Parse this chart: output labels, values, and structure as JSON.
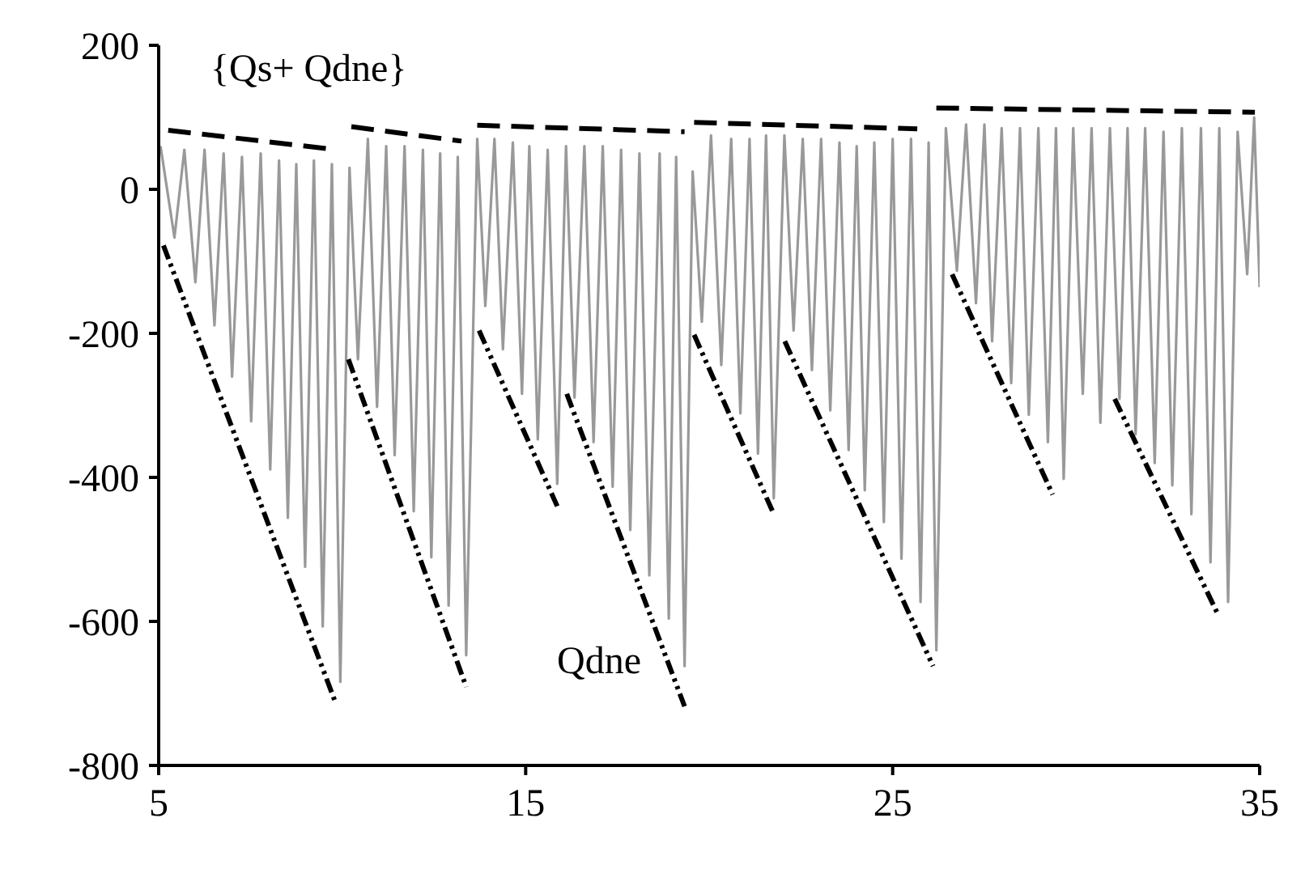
{
  "chart_data": {
    "type": "line",
    "xlim": [
      5,
      35
    ],
    "xticks": [
      5,
      15,
      25,
      35
    ],
    "ylim": [
      -800,
      200
    ],
    "yticks": [
      -800,
      -600,
      -400,
      -200,
      0,
      200
    ],
    "grid": false,
    "legend": false,
    "marker": "none",
    "annotations": [
      "{Qs+ Qdne}",
      "Qdne"
    ],
    "series": [
      {
        "color": "#999999",
        "line_style": "solid",
        "x": [
          5.05,
          5.43,
          5.7,
          6.0,
          6.25,
          6.52,
          6.77,
          7.0,
          7.27,
          7.52,
          7.78,
          8.04,
          8.28,
          8.52,
          8.75,
          8.99,
          9.23,
          9.47,
          9.72,
          9.95,
          10.2,
          10.43,
          10.7,
          10.95,
          11.2,
          11.43,
          11.7,
          11.95,
          12.2,
          12.43,
          12.67,
          12.9,
          13.15,
          13.38,
          13.68,
          13.9,
          14.15,
          14.38,
          14.65,
          14.9,
          15.1,
          15.33,
          15.6,
          15.86,
          16.1,
          16.33,
          16.6,
          16.85,
          17.1,
          17.37,
          17.6,
          17.85,
          18.1,
          18.37,
          18.65,
          18.9,
          19.1,
          19.33,
          19.55,
          19.8,
          20.05,
          20.33,
          20.6,
          20.85,
          21.1,
          21.33,
          21.55,
          21.76,
          22.05,
          22.3,
          22.55,
          22.8,
          23.05,
          23.3,
          23.55,
          23.8,
          24.02,
          24.24,
          24.5,
          24.76,
          25.0,
          25.24,
          25.5,
          25.76,
          25.98,
          26.19,
          26.45,
          26.75,
          27.0,
          27.27,
          27.5,
          27.71,
          27.97,
          28.23,
          28.47,
          28.71,
          28.97,
          29.23,
          29.45,
          29.66,
          29.92,
          30.18,
          30.42,
          30.66,
          30.92,
          31.18,
          31.4,
          31.62,
          31.88,
          32.14,
          32.38,
          32.62,
          32.88,
          33.14,
          33.4,
          33.66,
          33.9,
          34.14,
          34.4,
          34.66,
          34.85,
          35
        ],
        "values": [
          60,
          -67,
          55,
          -129,
          55,
          -189,
          50,
          -260,
          45,
          -322,
          50,
          -389,
          40,
          -456,
          35,
          -524,
          40,
          -607,
          35,
          -684,
          30,
          -236,
          70,
          -302,
          60,
          -369,
          60,
          -447,
          55,
          -511,
          50,
          -578,
          45,
          -647,
          70,
          -162,
          70,
          -222,
          65,
          -284,
          60,
          -347,
          55,
          -409,
          60,
          -289,
          60,
          -351,
          60,
          -413,
          55,
          -473,
          50,
          -536,
          50,
          -596,
          45,
          -662,
          25,
          -184,
          75,
          -244,
          70,
          -311,
          70,
          -367,
          75,
          -429,
          75,
          -196,
          70,
          -251,
          70,
          -307,
          65,
          -362,
          60,
          -418,
          65,
          -462,
          70,
          -513,
          70,
          -573,
          65,
          -640,
          85,
          -113,
          90,
          -158,
          90,
          -211,
          85,
          -269,
          85,
          -313,
          85,
          -351,
          85,
          -402,
          85,
          -284,
          85,
          -324,
          85,
          -291,
          85,
          -340,
          85,
          -380,
          80,
          -411,
          85,
          -451,
          85,
          -518,
          85,
          -573,
          80,
          -118,
          100,
          -136
        ]
      },
      {
        "color": "#000000",
        "line_style": "dashed",
        "x": [
          5.26,
          9.69,
          10.0,
          10.25,
          13.25,
          13.5,
          13.68,
          19.33,
          19.45,
          19.59,
          25.67,
          25.9,
          26.19,
          34.87
        ],
        "values": [
          82,
          56,
          null,
          87,
          67,
          null,
          89,
          80,
          null,
          93,
          84,
          null,
          113,
          107
        ]
      },
      {
        "color": "#000000",
        "line_style": "dotted",
        "x": [
          5.13,
          9.82,
          10.0,
          10.17,
          13.38,
          13.55,
          13.73,
          15.86,
          16.0,
          16.12,
          19.33,
          19.45,
          19.59,
          21.76,
          21.9,
          22.06,
          26.1,
          26.3,
          26.62,
          29.36,
          30.2,
          31.05,
          33.87
        ],
        "values": [
          -78,
          -713,
          null,
          -236,
          -691,
          null,
          -196,
          -440,
          null,
          -284,
          -718,
          null,
          -202,
          -451,
          null,
          -211,
          -662,
          null,
          -118,
          -424,
          null,
          -291,
          -591
        ]
      }
    ]
  }
}
